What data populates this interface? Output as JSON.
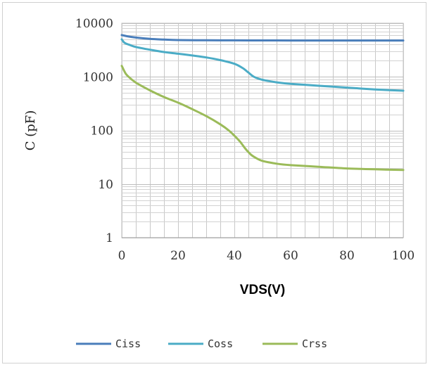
{
  "chart_data": {
    "type": "line",
    "title": "",
    "xlabel": "VDS(V)",
    "ylabel": "C (pF)",
    "xlim": [
      0,
      100
    ],
    "ylim": [
      1,
      10000
    ],
    "yscale": "log",
    "x_ticks": [
      "0",
      "20",
      "40",
      "60",
      "80",
      "100"
    ],
    "y_ticks": [
      "1",
      "10",
      "100",
      "1000",
      "10000"
    ],
    "grid": true,
    "legend_position": "bottom",
    "series": [
      {
        "name": "Ciss",
        "color": "#4a7ebb",
        "x": [
          0,
          2,
          5,
          10,
          15,
          20,
          30,
          40,
          50,
          60,
          70,
          80,
          90,
          100
        ],
        "y": [
          6000,
          5700,
          5400,
          5100,
          4950,
          4850,
          4800,
          4780,
          4770,
          4760,
          4760,
          4760,
          4760,
          4760
        ]
      },
      {
        "name": "Coss",
        "color": "#4bacc6",
        "x": [
          0,
          1,
          3,
          5,
          10,
          15,
          20,
          25,
          30,
          35,
          40,
          43,
          45,
          47,
          50,
          55,
          60,
          70,
          80,
          90,
          100
        ],
        "y": [
          5000,
          4300,
          3900,
          3600,
          3200,
          2900,
          2700,
          2500,
          2300,
          2050,
          1750,
          1450,
          1200,
          1000,
          880,
          790,
          740,
          680,
          630,
          580,
          550
        ]
      },
      {
        "name": "Crss",
        "color": "#9bbb59",
        "x": [
          0,
          1,
          2,
          5,
          10,
          15,
          20,
          25,
          30,
          35,
          38,
          40,
          42,
          44,
          46,
          48,
          50,
          55,
          60,
          70,
          80,
          90,
          100
        ],
        "y": [
          1600,
          1250,
          1050,
          780,
          560,
          420,
          330,
          250,
          185,
          130,
          100,
          80,
          62,
          45,
          35,
          30,
          27,
          24,
          22.5,
          21,
          19.5,
          18.8,
          18.3
        ]
      }
    ]
  }
}
